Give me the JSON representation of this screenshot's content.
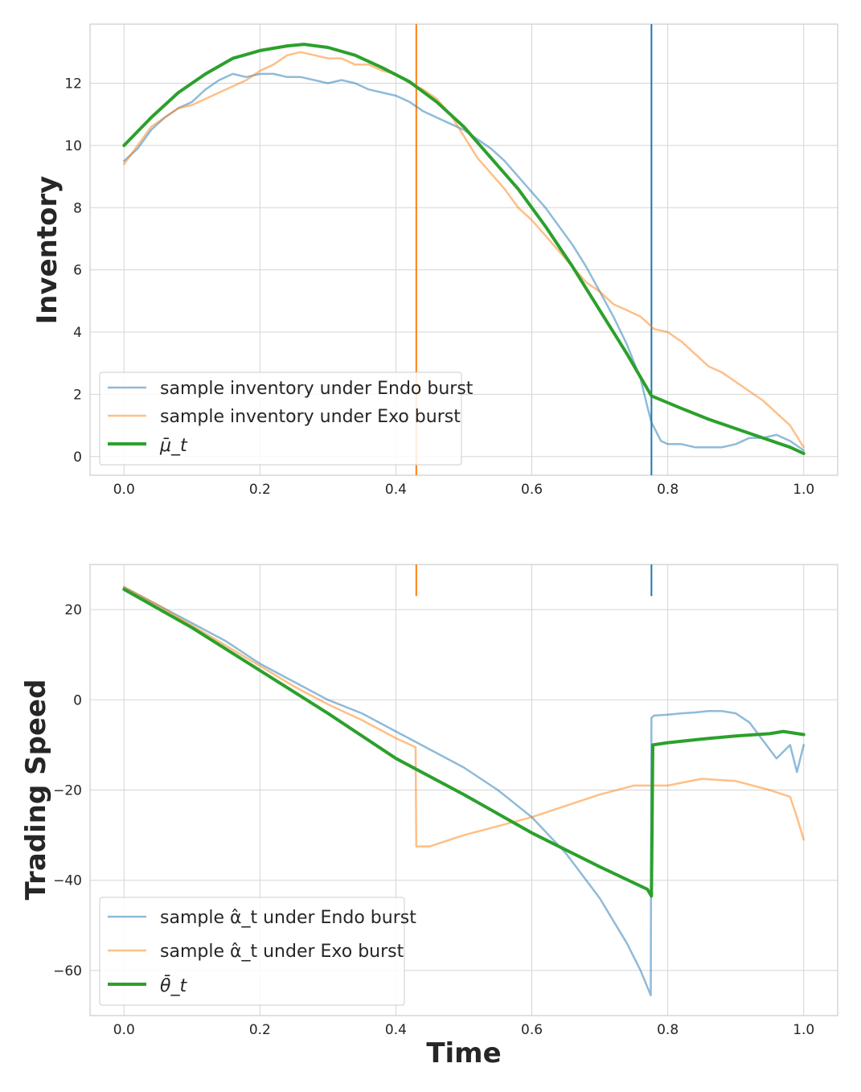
{
  "chart_data": [
    {
      "type": "line",
      "xlabel": "",
      "ylabel": "Inventory",
      "xlim": [
        -0.05,
        1.05
      ],
      "ylim": [
        -0.6,
        13.9
      ],
      "x_ticks": [
        0.0,
        0.2,
        0.4,
        0.6,
        0.8,
        1.0
      ],
      "x_tick_labels": [
        "0.0",
        "0.2",
        "0.4",
        "0.6",
        "0.8",
        "1.0"
      ],
      "y_ticks": [
        0,
        2,
        4,
        6,
        8,
        10,
        12
      ],
      "y_tick_labels": [
        "0",
        "2",
        "4",
        "6",
        "8",
        "10",
        "12"
      ],
      "grid": true,
      "legend_position": "lower-left",
      "vlines": [
        {
          "x": 0.43,
          "color": "#ff7f0e"
        },
        {
          "x": 0.776,
          "color": "#1f77b4"
        }
      ],
      "series": [
        {
          "name": "sample inventory under Endo burst",
          "color": "#1f77b4",
          "opacity": 0.5,
          "width": 2.5,
          "x": [
            0.0,
            0.02,
            0.04,
            0.06,
            0.08,
            0.1,
            0.12,
            0.14,
            0.16,
            0.18,
            0.2,
            0.22,
            0.24,
            0.26,
            0.28,
            0.3,
            0.32,
            0.34,
            0.36,
            0.38,
            0.4,
            0.42,
            0.44,
            0.46,
            0.48,
            0.5,
            0.52,
            0.54,
            0.56,
            0.58,
            0.6,
            0.62,
            0.64,
            0.66,
            0.68,
            0.7,
            0.72,
            0.74,
            0.76,
            0.77,
            0.776,
            0.79,
            0.8,
            0.82,
            0.84,
            0.86,
            0.88,
            0.9,
            0.92,
            0.94,
            0.96,
            0.98,
            1.0
          ],
          "y": [
            9.5,
            9.9,
            10.5,
            10.9,
            11.2,
            11.4,
            11.8,
            12.1,
            12.3,
            12.2,
            12.3,
            12.3,
            12.2,
            12.2,
            12.1,
            12.0,
            12.1,
            12.0,
            11.8,
            11.7,
            11.6,
            11.4,
            11.1,
            10.9,
            10.7,
            10.5,
            10.2,
            9.9,
            9.5,
            9.0,
            8.5,
            8.0,
            7.4,
            6.8,
            6.1,
            5.3,
            4.5,
            3.6,
            2.5,
            1.6,
            1.1,
            0.5,
            0.4,
            0.4,
            0.3,
            0.3,
            0.3,
            0.4,
            0.6,
            0.6,
            0.7,
            0.5,
            0.2
          ]
        },
        {
          "name": "sample inventory under Exo burst",
          "color": "#ff7f0e",
          "opacity": 0.5,
          "width": 2.5,
          "x": [
            0.0,
            0.02,
            0.04,
            0.06,
            0.08,
            0.1,
            0.12,
            0.14,
            0.16,
            0.18,
            0.2,
            0.22,
            0.24,
            0.26,
            0.28,
            0.3,
            0.32,
            0.34,
            0.36,
            0.38,
            0.4,
            0.42,
            0.43,
            0.44,
            0.46,
            0.48,
            0.5,
            0.52,
            0.54,
            0.56,
            0.58,
            0.6,
            0.62,
            0.64,
            0.66,
            0.68,
            0.7,
            0.72,
            0.74,
            0.76,
            0.78,
            0.8,
            0.82,
            0.84,
            0.86,
            0.88,
            0.9,
            0.92,
            0.94,
            0.96,
            0.98,
            1.0
          ],
          "y": [
            9.4,
            10.0,
            10.6,
            10.9,
            11.2,
            11.3,
            11.5,
            11.7,
            11.9,
            12.1,
            12.4,
            12.6,
            12.9,
            13.0,
            12.9,
            12.8,
            12.8,
            12.6,
            12.6,
            12.4,
            12.3,
            12.0,
            11.9,
            11.8,
            11.5,
            11.0,
            10.3,
            9.6,
            9.1,
            8.6,
            8.0,
            7.6,
            7.1,
            6.6,
            6.1,
            5.6,
            5.3,
            4.9,
            4.7,
            4.5,
            4.1,
            4.0,
            3.7,
            3.3,
            2.9,
            2.7,
            2.4,
            2.1,
            1.8,
            1.4,
            1.0,
            0.3
          ]
        },
        {
          "name": "μ̄_t",
          "color": "#2ca02c",
          "opacity": 1,
          "width": 4,
          "x": [
            0.0,
            0.04,
            0.08,
            0.12,
            0.16,
            0.2,
            0.24,
            0.265,
            0.3,
            0.34,
            0.38,
            0.42,
            0.46,
            0.5,
            0.54,
            0.58,
            0.62,
            0.66,
            0.7,
            0.74,
            0.776,
            0.82,
            0.86,
            0.9,
            0.94,
            0.98,
            1.0
          ],
          "y": [
            10.0,
            10.9,
            11.7,
            12.3,
            12.8,
            13.05,
            13.2,
            13.25,
            13.15,
            12.9,
            12.5,
            12.05,
            11.4,
            10.6,
            9.6,
            8.6,
            7.4,
            6.1,
            4.7,
            3.3,
            1.95,
            1.55,
            1.2,
            0.9,
            0.6,
            0.3,
            0.1
          ]
        }
      ]
    },
    {
      "type": "line",
      "xlabel": "Time",
      "ylabel": "Trading Speed",
      "xlim": [
        -0.05,
        1.05
      ],
      "ylim": [
        -70,
        30
      ],
      "x_ticks": [
        0.0,
        0.2,
        0.4,
        0.6,
        0.8,
        1.0
      ],
      "x_tick_labels": [
        "0.0",
        "0.2",
        "0.4",
        "0.6",
        "0.8",
        "1.0"
      ],
      "y_ticks": [
        -60,
        -40,
        -20,
        0,
        20
      ],
      "y_tick_labels": [
        "−60",
        "−40",
        "−20",
        "0",
        "20"
      ],
      "grid": true,
      "legend_position": "lower-left",
      "vlines": [
        {
          "x": 0.43,
          "color": "#ff7f0e",
          "ymin": 23,
          "ymax": 30
        },
        {
          "x": 0.776,
          "color": "#1f77b4",
          "ymin": 23,
          "ymax": 30
        }
      ],
      "series": [
        {
          "name": "sample α̂_t under Endo burst",
          "color": "#1f77b4",
          "opacity": 0.5,
          "width": 2.5,
          "x": [
            0.0,
            0.05,
            0.1,
            0.15,
            0.2,
            0.25,
            0.3,
            0.35,
            0.4,
            0.45,
            0.5,
            0.55,
            0.6,
            0.65,
            0.7,
            0.72,
            0.74,
            0.76,
            0.775,
            0.776,
            0.78,
            0.8,
            0.82,
            0.84,
            0.86,
            0.88,
            0.9,
            0.92,
            0.94,
            0.96,
            0.98,
            0.99,
            1.0
          ],
          "y": [
            25,
            21,
            17,
            13,
            8,
            4,
            0,
            -3,
            -7,
            -11,
            -15,
            -20,
            -26,
            -34,
            -44,
            -49,
            -54,
            -60,
            -65.5,
            -4,
            -3.5,
            -3.3,
            -3.0,
            -2.8,
            -2.5,
            -2.5,
            -3,
            -5,
            -9,
            -13,
            -10,
            -16,
            -10
          ]
        },
        {
          "name": "sample α̂_t under Exo burst",
          "color": "#ff7f0e",
          "opacity": 0.5,
          "width": 2.5,
          "x": [
            0.0,
            0.05,
            0.1,
            0.15,
            0.2,
            0.25,
            0.3,
            0.35,
            0.4,
            0.429,
            0.43,
            0.45,
            0.5,
            0.55,
            0.6,
            0.65,
            0.7,
            0.75,
            0.8,
            0.85,
            0.9,
            0.95,
            0.98,
            0.99,
            1.0
          ],
          "y": [
            25,
            21,
            16.5,
            12,
            7.5,
            3,
            -1,
            -4.5,
            -8.5,
            -10.5,
            -32.5,
            -32.5,
            -30,
            -28,
            -26,
            -23.5,
            -21,
            -19,
            -19,
            -17.5,
            -18,
            -20,
            -21.5,
            -26,
            -31
          ]
        },
        {
          "name": "θ̄_t",
          "color": "#2ca02c",
          "opacity": 1,
          "width": 4,
          "x": [
            0.0,
            0.1,
            0.2,
            0.3,
            0.4,
            0.5,
            0.6,
            0.7,
            0.77,
            0.776,
            0.778,
            0.8,
            0.85,
            0.9,
            0.95,
            0.97,
            1.0
          ],
          "y": [
            24.5,
            16,
            6.5,
            -3,
            -13,
            -21,
            -29.5,
            -37,
            -42,
            -43.5,
            -10,
            -9.5,
            -8.7,
            -8,
            -7.5,
            -7,
            -7.7
          ]
        }
      ]
    }
  ]
}
